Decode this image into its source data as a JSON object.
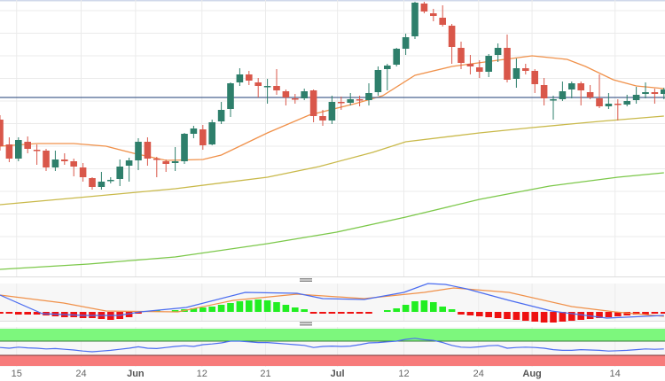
{
  "chart_data": {
    "type": "candlestick",
    "title": "",
    "xlabel": "",
    "ylabel": "",
    "price_ylim": [
      0,
      310
    ],
    "x_tick_labels": [
      {
        "label": "15",
        "index": 1.8,
        "month": false
      },
      {
        "label": "24",
        "index": 8.8,
        "month": false
      },
      {
        "label": "Jun",
        "index": 14.7,
        "month": true
      },
      {
        "label": "12",
        "index": 21.9,
        "month": false
      },
      {
        "label": "21",
        "index": 28.8,
        "month": false
      },
      {
        "label": "Jul",
        "index": 36.6,
        "month": true
      },
      {
        "label": "12",
        "index": 43.8,
        "month": false
      },
      {
        "label": "24",
        "index": 51.9,
        "month": false
      },
      {
        "label": "Aug",
        "index": 57.7,
        "month": true
      },
      {
        "label": "14",
        "index": 66.7,
        "month": false
      }
    ],
    "candles_ohlc": [
      [
        175,
        180,
        140,
        145
      ],
      [
        147,
        155,
        127,
        131
      ],
      [
        131,
        155,
        128,
        152
      ],
      [
        150,
        156,
        137,
        142
      ],
      [
        141,
        147,
        124,
        140
      ],
      [
        140,
        142,
        117,
        121
      ],
      [
        121,
        140,
        117,
        130
      ],
      [
        130,
        137,
        124,
        128
      ],
      [
        128,
        131,
        111,
        122
      ],
      [
        121,
        126,
        105,
        110
      ],
      [
        109,
        110,
        96,
        99
      ],
      [
        99,
        116,
        96,
        105
      ],
      [
        106,
        110,
        103,
        107
      ],
      [
        108,
        130,
        100,
        122
      ],
      [
        123,
        132,
        105,
        129
      ],
      [
        129,
        154,
        118,
        150
      ],
      [
        150,
        155,
        123,
        131
      ],
      [
        131,
        133,
        110,
        130
      ],
      [
        128,
        130,
        116,
        125
      ],
      [
        126,
        144,
        117,
        128
      ],
      [
        128,
        160,
        125,
        159
      ],
      [
        159,
        168,
        154,
        165
      ],
      [
        164,
        169,
        141,
        146
      ],
      [
        147,
        175,
        146,
        172
      ],
      [
        173,
        195,
        170,
        186
      ],
      [
        187,
        217,
        178,
        216
      ],
      [
        217,
        233,
        213,
        226
      ],
      [
        226,
        230,
        214,
        219
      ],
      [
        217,
        222,
        200,
        213
      ],
      [
        213,
        221,
        193,
        213
      ],
      [
        213,
        232,
        203,
        208
      ],
      [
        207,
        209,
        191,
        200
      ],
      [
        199,
        204,
        193,
        198
      ],
      [
        199,
        210,
        197,
        207
      ],
      [
        208,
        209,
        172,
        179
      ],
      [
        179,
        186,
        168,
        174
      ],
      [
        174,
        202,
        170,
        195
      ],
      [
        195,
        201,
        186,
        194
      ],
      [
        194,
        205,
        191,
        198
      ],
      [
        198,
        202,
        190,
        197
      ],
      [
        197,
        216,
        191,
        205
      ],
      [
        206,
        235,
        202,
        231
      ],
      [
        232,
        238,
        208,
        236
      ],
      [
        237,
        256,
        235,
        255
      ],
      [
        255,
        272,
        248,
        268
      ],
      [
        269,
        308,
        266,
        307
      ],
      [
        306,
        308,
        295,
        297
      ],
      [
        295,
        300,
        286,
        292
      ],
      [
        290,
        304,
        280,
        282
      ],
      [
        281,
        283,
        238,
        257
      ],
      [
        256,
        263,
        232,
        239
      ],
      [
        238,
        248,
        226,
        235
      ],
      [
        234,
        242,
        222,
        229
      ],
      [
        229,
        249,
        223,
        247
      ],
      [
        248,
        261,
        240,
        256
      ],
      [
        256,
        271,
        217,
        220
      ],
      [
        221,
        244,
        211,
        233
      ],
      [
        233,
        238,
        226,
        230
      ],
      [
        230,
        232,
        205,
        215
      ],
      [
        214,
        222,
        191,
        199
      ],
      [
        198,
        202,
        175,
        198
      ],
      [
        198,
        218,
        196,
        207
      ],
      [
        209,
        218,
        199,
        216
      ],
      [
        216,
        218,
        191,
        208
      ],
      [
        206,
        214,
        198,
        200
      ],
      [
        199,
        226,
        188,
        190
      ],
      [
        190,
        205,
        187,
        193
      ],
      [
        193,
        198,
        174,
        192
      ],
      [
        192,
        203,
        190,
        196
      ],
      [
        197,
        212,
        193,
        203
      ],
      [
        204,
        217,
        199,
        206
      ],
      [
        206,
        210,
        193,
        204
      ],
      [
        204,
        211,
        198,
        209
      ]
    ],
    "reference_line": 200,
    "moving_averages": [
      {
        "color": "#f0914a",
        "points": [
          [
            0,
            145
          ],
          [
            4,
            148
          ],
          [
            8,
            148
          ],
          [
            11.5,
            145
          ],
          [
            14.5,
            137
          ],
          [
            18,
            129
          ],
          [
            22,
            130
          ],
          [
            24,
            135
          ],
          [
            29,
            160
          ],
          [
            33.5,
            180
          ],
          [
            38.5,
            193
          ],
          [
            41.5,
            202
          ],
          [
            45,
            225
          ],
          [
            49,
            235
          ],
          [
            54,
            242
          ],
          [
            57.7,
            247
          ],
          [
            61.5,
            243
          ],
          [
            63.5,
            235
          ],
          [
            66.5,
            220
          ],
          [
            69,
            213
          ],
          [
            72,
            210
          ]
        ]
      },
      {
        "color": "#c9b94a",
        "points": [
          [
            0,
            79
          ],
          [
            9.6,
            88
          ],
          [
            19,
            97
          ],
          [
            29,
            110
          ],
          [
            34.6,
            122
          ],
          [
            40.4,
            138
          ],
          [
            44,
            150
          ],
          [
            52,
            160
          ],
          [
            57.7,
            166
          ],
          [
            65,
            173
          ],
          [
            72,
            179
          ]
        ]
      },
      {
        "color": "#7cc84a",
        "points": [
          [
            0,
            6
          ],
          [
            9.6,
            12
          ],
          [
            19,
            20
          ],
          [
            29,
            35
          ],
          [
            36.5,
            48
          ],
          [
            44,
            65
          ],
          [
            52,
            85
          ],
          [
            59.6,
            100
          ],
          [
            67,
            110
          ],
          [
            72,
            115
          ]
        ]
      }
    ],
    "macd": {
      "histogram": [
        -2,
        -2,
        -3,
        -3,
        -3,
        -4,
        -5,
        -6,
        -6,
        -7,
        -7,
        -8,
        -9,
        -8,
        -6,
        -1,
        0,
        1,
        0,
        2,
        3,
        4,
        5,
        6,
        8,
        10,
        12,
        13,
        14,
        13,
        11,
        8,
        5,
        3,
        -2,
        -2,
        -2,
        -2,
        -2,
        -2,
        -2,
        0,
        2,
        4,
        8,
        12,
        13,
        11,
        6,
        3,
        -3,
        -4,
        -5,
        -6,
        -7,
        -8,
        -9,
        -10,
        -11,
        -12,
        -12,
        -11,
        -10,
        -9,
        -8,
        -7,
        -6,
        -5,
        -4,
        -3,
        -3,
        -2,
        -2
      ],
      "macd_line": {
        "color": "#4a6cf0",
        "points": [
          [
            0,
            19
          ],
          [
            4.6,
            -2
          ],
          [
            9.2,
            -4
          ],
          [
            12.9,
            -4
          ],
          [
            15.2,
            0
          ],
          [
            20.2,
            5
          ],
          [
            26.6,
            22
          ],
          [
            32.2,
            21
          ],
          [
            35,
            15
          ],
          [
            39.5,
            14
          ],
          [
            43.8,
            22
          ],
          [
            46.4,
            32
          ],
          [
            48.3,
            31
          ],
          [
            50.6,
            26
          ],
          [
            55.2,
            13
          ],
          [
            59.8,
            1
          ],
          [
            65.8,
            -7
          ],
          [
            72,
            -4
          ]
        ]
      },
      "signal_line": {
        "color": "#f0914a",
        "points": [
          [
            0,
            19
          ],
          [
            6.9,
            10
          ],
          [
            11.5,
            1
          ],
          [
            19.3,
            0
          ],
          [
            25.3,
            13
          ],
          [
            32.2,
            20
          ],
          [
            39.5,
            15
          ],
          [
            46,
            22
          ],
          [
            49.2,
            27
          ],
          [
            55.2,
            22
          ],
          [
            62,
            6
          ],
          [
            66.7,
            0
          ],
          [
            72,
            -5
          ]
        ]
      },
      "positive_color": "#22ee22",
      "negative_color": "#ee1111"
    },
    "rsi": {
      "values": [
        52,
        50,
        53,
        51,
        50,
        48,
        49,
        47,
        45,
        42,
        40,
        42,
        44,
        47,
        50,
        54,
        50,
        49,
        52,
        55,
        57,
        55,
        60,
        62,
        65,
        70,
        70,
        68,
        66,
        66,
        64,
        62,
        60,
        58,
        52,
        55,
        56,
        55,
        56,
        60,
        65,
        66,
        68,
        70,
        75,
        78,
        74,
        72,
        66,
        58,
        53,
        52,
        54,
        57,
        58,
        50,
        52,
        53,
        52,
        50,
        46,
        44,
        44,
        46,
        45,
        44,
        42,
        43,
        44,
        46,
        48,
        47,
        48
      ],
      "overbought": 70,
      "oversold": 30,
      "line_color": "#4a6cf0",
      "overbought_color": "#7df77d",
      "oversold_color": "#f77b7b"
    },
    "colors": {
      "up": "#2e7f6b",
      "down": "#d9574a",
      "reference_line": "#4a6390"
    }
  }
}
